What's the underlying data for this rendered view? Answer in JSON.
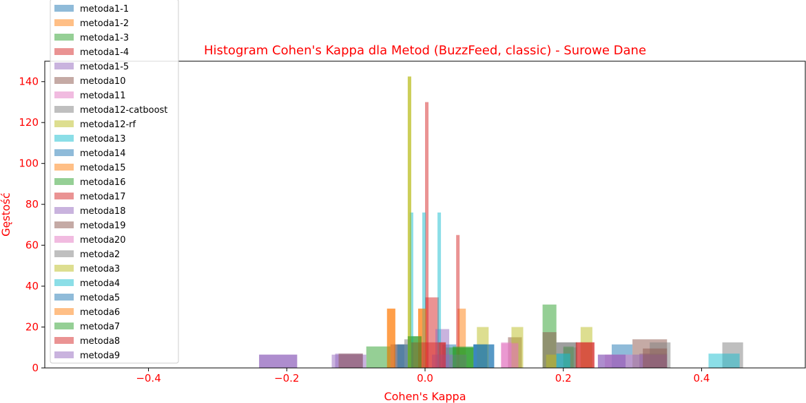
{
  "chart_data": {
    "type": "histogram",
    "title": "Histogram Cohen's Kappa dla Metod (BuzzFeed, classic) - Surowe Dane",
    "xlabel": "Cohen's Kappa",
    "ylabel": "Gęstość",
    "xlim": [
      -0.55,
      0.55
    ],
    "ylim": [
      0,
      150
    ],
    "xticks": [
      -0.4,
      -0.2,
      0.0,
      0.2,
      0.4
    ],
    "xtick_labels": [
      "−0.4",
      "−0.2",
      "0.0",
      "0.2",
      "0.4"
    ],
    "yticks": [
      0,
      20,
      40,
      60,
      80,
      100,
      120,
      140
    ],
    "ytick_labels": [
      "0",
      "20",
      "40",
      "60",
      "80",
      "100",
      "120",
      "140"
    ],
    "grid": false,
    "legend_position": "upper-left",
    "alpha": 0.5,
    "text_color": "#ff0000",
    "series": [
      {
        "name": "metoda1-1",
        "color": "#1f77b4",
        "bins": [
          [
            -0.045,
            -0.025,
            11.5
          ],
          [
            0.025,
            0.045,
            11.5
          ],
          [
            0.27,
            0.3,
            11.5
          ],
          [
            0.07,
            0.1,
            11.5
          ]
        ]
      },
      {
        "name": "metoda1-2",
        "color": "#ff7f0e",
        "bins": [
          [
            -0.055,
            -0.043,
            29
          ],
          [
            -0.01,
            0.002,
            29
          ],
          [
            0.047,
            0.059,
            29
          ]
        ]
      },
      {
        "name": "metoda1-3",
        "color": "#2ca02c",
        "bins": [
          [
            -0.025,
            -0.005,
            15.5
          ],
          [
            0.03,
            0.05,
            10
          ],
          [
            0.05,
            0.07,
            10
          ],
          [
            0.17,
            0.19,
            31
          ],
          [
            0.2,
            0.22,
            10
          ]
        ]
      },
      {
        "name": "metoda1-4",
        "color": "#d62728",
        "bins": [
          [
            0.0,
            0.02,
            34.5
          ],
          [
            0.045,
            0.05,
            65
          ],
          [
            0.0,
            0.005,
            130
          ]
        ]
      },
      {
        "name": "metoda1-5",
        "color": "#9467bd",
        "bins": [
          [
            -0.13,
            -0.09,
            7
          ],
          [
            0.015,
            0.035,
            19
          ],
          [
            0.31,
            0.35,
            7
          ]
        ]
      },
      {
        "name": "metoda10",
        "color": "#8c564b",
        "bins": [
          [
            -0.05,
            -0.03,
            11.5
          ],
          [
            0.12,
            0.14,
            15
          ],
          [
            0.3,
            0.35,
            14
          ],
          [
            0.17,
            0.19,
            17.5
          ]
        ]
      },
      {
        "name": "metoda11",
        "color": "#e377c2",
        "bins": [
          [
            0.11,
            0.135,
            12.5
          ],
          [
            0.26,
            0.3,
            6.5
          ]
        ]
      },
      {
        "name": "metoda12-catboost",
        "color": "#7f7f7f",
        "bins": [
          [
            0.43,
            0.46,
            12.5
          ],
          [
            0.325,
            0.355,
            12.5
          ],
          [
            0.19,
            0.22,
            12.5
          ]
        ]
      },
      {
        "name": "metoda12-rf",
        "color": "#bcbd22",
        "bins": [
          [
            -0.025,
            -0.02,
            142.5
          ],
          [
            0.075,
            0.092,
            20
          ],
          [
            0.125,
            0.142,
            20
          ],
          [
            0.225,
            0.242,
            20
          ],
          [
            0.175,
            0.19,
            6.5
          ]
        ]
      },
      {
        "name": "metoda13",
        "color": "#17becf",
        "bins": [
          [
            -0.022,
            -0.017,
            76
          ],
          [
            -0.004,
            0.001,
            76
          ],
          [
            0.018,
            0.023,
            76
          ],
          [
            0.41,
            0.455,
            7
          ],
          [
            0.19,
            0.21,
            7
          ]
        ]
      },
      {
        "name": "metoda14",
        "color": "#1f77b4",
        "bins": [
          [
            -0.04,
            -0.025,
            11.5
          ],
          [
            0.07,
            0.09,
            11.5
          ]
        ]
      },
      {
        "name": "metoda15",
        "color": "#ff7f0e",
        "bins": [
          [
            -0.01,
            0.002,
            29
          ]
        ]
      },
      {
        "name": "metoda16",
        "color": "#2ca02c",
        "bins": [
          [
            -0.085,
            -0.05,
            10.5
          ],
          [
            0.04,
            0.07,
            10.5
          ],
          [
            0.2,
            0.215,
            10.5
          ]
        ]
      },
      {
        "name": "metoda17",
        "color": "#d62728",
        "bins": [
          [
            -0.02,
            0.0,
            12.5
          ],
          [
            0.02,
            0.03,
            12.5
          ],
          [
            0.218,
            0.245,
            12.5
          ]
        ]
      },
      {
        "name": "metoda18",
        "color": "#9467bd",
        "bins": [
          [
            -0.24,
            -0.185,
            6.5
          ],
          [
            -0.135,
            -0.085,
            6.5
          ],
          [
            0.01,
            0.06,
            6.5
          ],
          [
            0.25,
            0.29,
            6.5
          ],
          [
            0.3,
            0.35,
            6.5
          ]
        ]
      },
      {
        "name": "metoda19",
        "color": "#8c564b",
        "bins": [
          [
            -0.125,
            -0.09,
            7
          ],
          [
            0.315,
            0.35,
            9.5
          ]
        ]
      },
      {
        "name": "metoda20",
        "color": "#e377c2",
        "bins": [
          [
            0.11,
            0.135,
            12
          ]
        ]
      },
      {
        "name": "metoda2",
        "color": "#7f7f7f",
        "bins": [
          [
            -0.03,
            -0.02,
            14
          ],
          [
            0.19,
            0.22,
            12.5
          ]
        ]
      },
      {
        "name": "metoda3",
        "color": "#bcbd22",
        "bins": [
          [
            -0.025,
            -0.02,
            142.5
          ]
        ]
      },
      {
        "name": "metoda4",
        "color": "#17becf",
        "bins": [
          [
            0.19,
            0.21,
            7
          ]
        ]
      },
      {
        "name": "metoda5",
        "color": "#1f77b4",
        "bins": [
          [
            0.07,
            0.1,
            11.5
          ]
        ]
      },
      {
        "name": "metoda6",
        "color": "#ff7f0e",
        "bins": [
          [
            -0.055,
            -0.043,
            29
          ]
        ]
      },
      {
        "name": "metoda7",
        "color": "#2ca02c",
        "bins": [
          [
            -0.025,
            -0.005,
            15.5
          ],
          [
            0.04,
            0.07,
            10
          ]
        ]
      },
      {
        "name": "metoda8",
        "color": "#d62728",
        "bins": [
          [
            0.0,
            0.03,
            12.5
          ],
          [
            0.218,
            0.245,
            12.5
          ]
        ]
      },
      {
        "name": "metoda9",
        "color": "#9467bd",
        "bins": [
          [
            -0.24,
            -0.185,
            6.5
          ],
          [
            0.25,
            0.29,
            6.5
          ]
        ]
      }
    ]
  }
}
